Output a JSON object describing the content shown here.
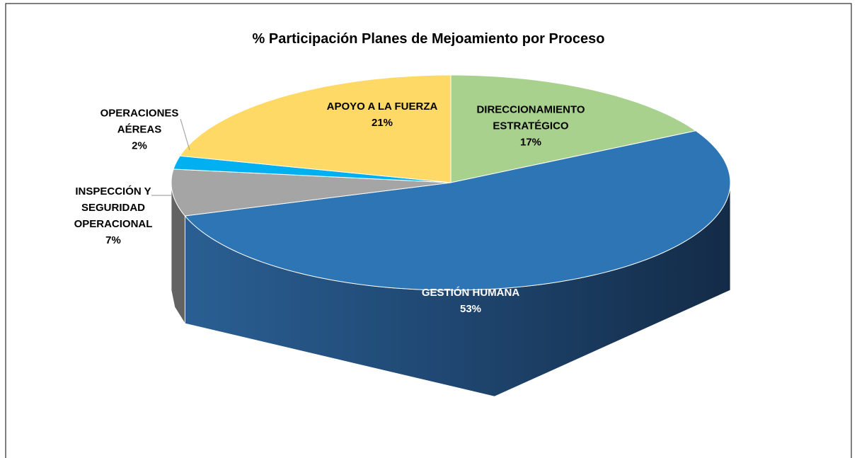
{
  "chart_data": {
    "type": "pie",
    "title": "% Participación Planes de Mejoamiento por Proceso",
    "categories": [
      "DIRECCIONAMIENTO ESTRATÉGICO",
      "GESTIÓN HUMANA",
      "INSPECCIÓN Y SEGURIDAD OPERACIONAL",
      "OPERACIONES AÉREAS",
      "APOYO A LA FUERZA"
    ],
    "values": [
      17,
      53,
      7,
      2,
      21
    ],
    "value_labels": [
      "17%",
      "53%",
      "7%",
      "2%",
      "21%"
    ],
    "colors": [
      "#a9d18e",
      "#2e75b6",
      "#a5a5a5",
      "#00b0f0",
      "#ffd966"
    ]
  }
}
